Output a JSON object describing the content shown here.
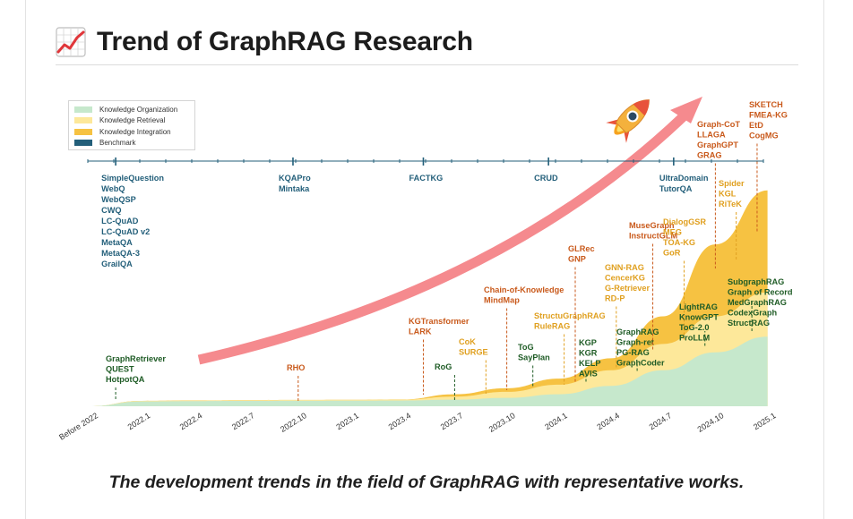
{
  "header": {
    "title": "Trend of GraphRAG Research"
  },
  "caption": "The development trends in the field of GraphRAG with representative works.",
  "colors": {
    "organization": "#c6e8cc",
    "retrieval": "#fde89a",
    "integration": "#f6c242",
    "benchmark": "#235f7a",
    "retrieval_text": "#1f5c26",
    "integration_text": "#c95a1c",
    "yellow_text": "#e0a020",
    "arrow": "#f58a8e"
  },
  "chart_data": {
    "type": "area",
    "title": "Trend of GraphRAG Research",
    "x_ticks": [
      "Before 2022",
      "2022.1",
      "2022.4",
      "2022.7",
      "2022.10",
      "2023.1",
      "2023.4",
      "2023.7",
      "2023.10",
      "2024.1",
      "2024.4",
      "2024.7",
      "2024.10",
      "2025.1"
    ],
    "legend": [
      {
        "key": "organization",
        "label": "Knowledge Organization"
      },
      {
        "key": "retrieval",
        "label": "Knowledge Retrieval"
      },
      {
        "key": "integration",
        "label": "Knowledge Integration"
      },
      {
        "key": "benchmark",
        "label": "Benchmark"
      }
    ],
    "series": [
      {
        "name": "Knowledge Organization",
        "x": [
          0,
          1,
          2,
          3,
          4,
          5,
          6,
          7,
          8,
          9,
          10,
          11,
          12,
          13
        ],
        "values": [
          0,
          4,
          4.3,
          4.5,
          4.6,
          4.7,
          4.8,
          5.5,
          7,
          10,
          17,
          30,
          45,
          58
        ]
      },
      {
        "name": "Knowledge Retrieval",
        "x": [
          0,
          1,
          2,
          3,
          4,
          5,
          6,
          7,
          8,
          9,
          10,
          11,
          12,
          13
        ],
        "values": [
          0,
          4.5,
          4.8,
          5,
          5.2,
          5.3,
          5.5,
          8,
          12,
          18,
          30,
          52,
          75,
          95
        ]
      },
      {
        "name": "Knowledge Integration",
        "x": [
          0,
          1,
          2,
          3,
          4,
          5,
          6,
          7,
          8,
          9,
          10,
          11,
          12,
          13
        ],
        "values": [
          0,
          4.5,
          4.9,
          5.1,
          5.3,
          5.4,
          5.7,
          10,
          15,
          23,
          40,
          75,
          135,
          180
        ]
      }
    ],
    "benchmarks": [
      {
        "x": 0.5,
        "label": [
          "SimpleQuestion",
          "WebQ",
          "WebQSP",
          "CWQ",
          "LC-QuAD",
          "LC-QuAD v2",
          "MetaQA",
          "MetaQA-3",
          "GrailQA"
        ]
      },
      {
        "x": 3.9,
        "label": [
          "KQAPro",
          "Mintaka"
        ]
      },
      {
        "x": 6.4,
        "label": [
          "FACTKG"
        ]
      },
      {
        "x": 8.8,
        "label": [
          "CRUD"
        ]
      },
      {
        "x": 11.2,
        "label": [
          "UltraDomain",
          "TutorQA"
        ]
      }
    ],
    "works": [
      {
        "x": 0.5,
        "cat": "retrieval",
        "label": [
          "GraphRetriever",
          "QUEST",
          "HotpotQA"
        ]
      },
      {
        "x": 4.0,
        "cat": "integration",
        "label": [
          "RHO"
        ]
      },
      {
        "x": 7.0,
        "cat": "retrieval",
        "label": [
          "RoG"
        ]
      },
      {
        "x": 6.4,
        "cat": "integration",
        "label": [
          "KGTransformer",
          "LARK"
        ]
      },
      {
        "x": 7.6,
        "cat": "yellow",
        "label": [
          "CoK",
          "SURGE"
        ]
      },
      {
        "x": 8.0,
        "cat": "integration",
        "label": [
          "Chain-of-Knowledge",
          "MindMap"
        ]
      },
      {
        "x": 8.5,
        "cat": "retrieval",
        "label": [
          "ToG",
          "SayPlan"
        ]
      },
      {
        "x": 9.1,
        "cat": "yellow",
        "label": [
          "StructuGraphRAG",
          "RuleRAG"
        ]
      },
      {
        "x": 9.3,
        "cat": "integration",
        "label": [
          "GLRec",
          "GNP"
        ]
      },
      {
        "x": 9.5,
        "cat": "retrieval",
        "label": [
          "KGP",
          "KGR",
          "KELP",
          "AVIS"
        ]
      },
      {
        "x": 10.1,
        "cat": "yellow",
        "label": [
          "GNN-RAG",
          "CencerKG",
          "G-Retriever",
          "RD-P"
        ]
      },
      {
        "x": 10.5,
        "cat": "retrieval",
        "label": [
          "GraphRAG",
          "Graph-ret",
          "PG-RAG",
          "GraphCoder"
        ]
      },
      {
        "x": 10.8,
        "cat": "integration",
        "label": [
          "MuseGraph",
          "InstructGLM"
        ]
      },
      {
        "x": 11.4,
        "cat": "yellow",
        "label": [
          "DialogGSR",
          "MEG",
          "TOA-KG",
          "GoR"
        ]
      },
      {
        "x": 11.8,
        "cat": "retrieval",
        "label": [
          "LightRAG",
          "KnowGPT",
          "ToG-2.0",
          "ProLLM"
        ]
      },
      {
        "x": 12.0,
        "cat": "integration",
        "label": [
          "Graph-CoT",
          "LLAGA",
          "GraphGPT",
          "GRAG"
        ]
      },
      {
        "x": 12.4,
        "cat": "yellow",
        "label": [
          "Spider",
          "KGL",
          "RiTeK"
        ]
      },
      {
        "x": 12.8,
        "cat": "integration",
        "label": [
          "SKETCH",
          "FMEA-KG",
          "EtD",
          "CogMG"
        ]
      },
      {
        "x": 12.7,
        "cat": "retrieval",
        "label": [
          "SubgraphRAG",
          "Graph of Record",
          "MedGraphRAG",
          "CodexGraph",
          "StructRAG"
        ]
      }
    ]
  }
}
